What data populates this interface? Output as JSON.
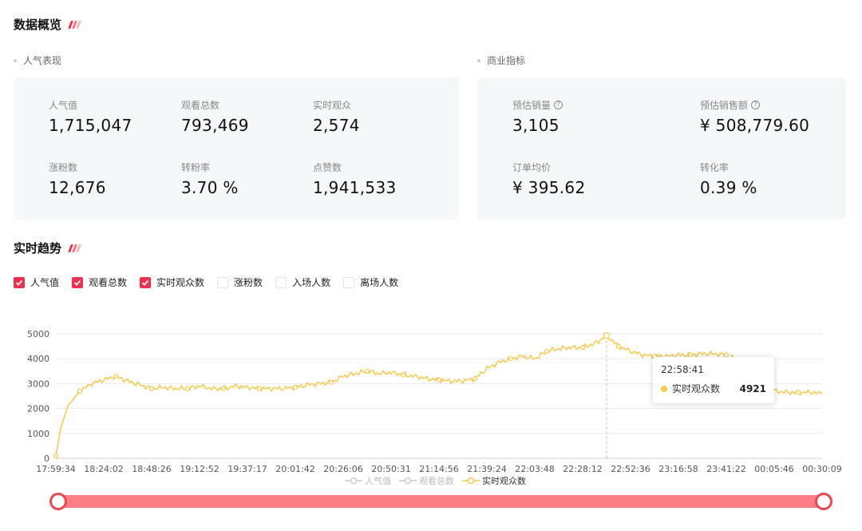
{
  "overview": {
    "title": "数据概览"
  },
  "popularity": {
    "label": "人气表现",
    "metrics": [
      {
        "label": "人气值",
        "value": "1,715,047"
      },
      {
        "label": "观看总数",
        "value": "793,469"
      },
      {
        "label": "实时观众",
        "value": "2,574"
      },
      {
        "label": "涨粉数",
        "value": "12,676"
      },
      {
        "label": "转粉率",
        "value": "3.70 %"
      },
      {
        "label": "点赞数",
        "value": "1,941,533"
      }
    ]
  },
  "commerce": {
    "label": "商业指标",
    "metrics": [
      {
        "label": "预估销量",
        "value": "3,105",
        "help_icon": "question-circle-icon"
      },
      {
        "label": "预估销售额",
        "value": "¥ 508,779.60",
        "help_icon": "question-circle-icon"
      },
      {
        "label": "订单均价",
        "value": "¥ 395.62"
      },
      {
        "label": "转化率",
        "value": "0.39 %"
      }
    ]
  },
  "trend": {
    "title": "实时趋势",
    "checkboxes": [
      {
        "label": "人气值",
        "checked": true
      },
      {
        "label": "观看总数",
        "checked": true
      },
      {
        "label": "实时观众数",
        "checked": true
      },
      {
        "label": "涨粉数",
        "checked": false
      },
      {
        "label": "入场人数",
        "checked": false
      },
      {
        "label": "离场人数",
        "checked": false
      }
    ],
    "tooltip": {
      "time": "22:58:41",
      "series": "实时观众数",
      "value": "4921"
    },
    "series_legend": [
      {
        "label": "人气值",
        "active": false
      },
      {
        "label": "观看总数",
        "active": false
      },
      {
        "label": "实时观众数",
        "active": true
      }
    ]
  },
  "colors": {
    "accent": "#f0314d",
    "line": "#f9c94b",
    "card_bg": "#f5f8f9",
    "slider": "#fb7f85"
  },
  "chart_data": {
    "type": "line",
    "title": "",
    "xlabel": "",
    "ylabel": "",
    "ylim": [
      0,
      5000
    ],
    "yticks": [
      0,
      1000,
      2000,
      3000,
      4000,
      5000
    ],
    "x_tick_labels": [
      "17:59:34",
      "18:24:02",
      "18:48:26",
      "19:12:52",
      "19:37:17",
      "20:01:42",
      "20:26:06",
      "20:50:31",
      "21:14:56",
      "21:39:24",
      "22:03:48",
      "22:28:12",
      "22:52:36",
      "23:16:58",
      "23:41:22",
      "00:05:46",
      "00:30:09"
    ],
    "grid": true,
    "legend": "bottom",
    "series": [
      {
        "name": "实时观众数",
        "color": "#f9c94b",
        "x_pos": [
          0,
          0.1,
          0.25,
          0.5,
          0.75,
          1,
          1.25,
          1.5,
          1.75,
          2,
          2.25,
          2.5,
          2.75,
          3,
          3.25,
          3.5,
          3.75,
          4,
          4.25,
          4.5,
          4.75,
          5,
          5.25,
          5.5,
          5.75,
          6,
          6.25,
          6.5,
          6.75,
          7,
          7.25,
          7.5,
          7.75,
          8,
          8.25,
          8.5,
          8.75,
          9,
          9.25,
          9.5,
          9.75,
          10,
          10.25,
          10.5,
          10.75,
          11,
          11.25,
          11.5,
          11.75,
          12,
          12.25,
          12.5,
          12.75,
          13,
          13.25,
          13.5,
          13.75,
          14,
          14.25,
          14.5,
          14.75,
          15,
          15.25,
          15.5,
          15.75,
          16
        ],
        "values": [
          100,
          1200,
          2100,
          2700,
          3000,
          3150,
          3300,
          3100,
          2950,
          2800,
          2850,
          2800,
          2800,
          2900,
          2800,
          2800,
          2900,
          2850,
          2800,
          2800,
          2800,
          2850,
          2950,
          3000,
          3050,
          3300,
          3400,
          3500,
          3400,
          3450,
          3350,
          3300,
          3200,
          3150,
          3100,
          3100,
          3200,
          3600,
          3850,
          4000,
          4100,
          4000,
          4300,
          4400,
          4450,
          4450,
          4600,
          4921,
          4500,
          4300,
          4150,
          4100,
          4100,
          4150,
          4150,
          4200,
          4200,
          4150,
          3900,
          3250,
          2900,
          2700,
          2650,
          2650,
          2650,
          2600
        ]
      }
    ]
  }
}
